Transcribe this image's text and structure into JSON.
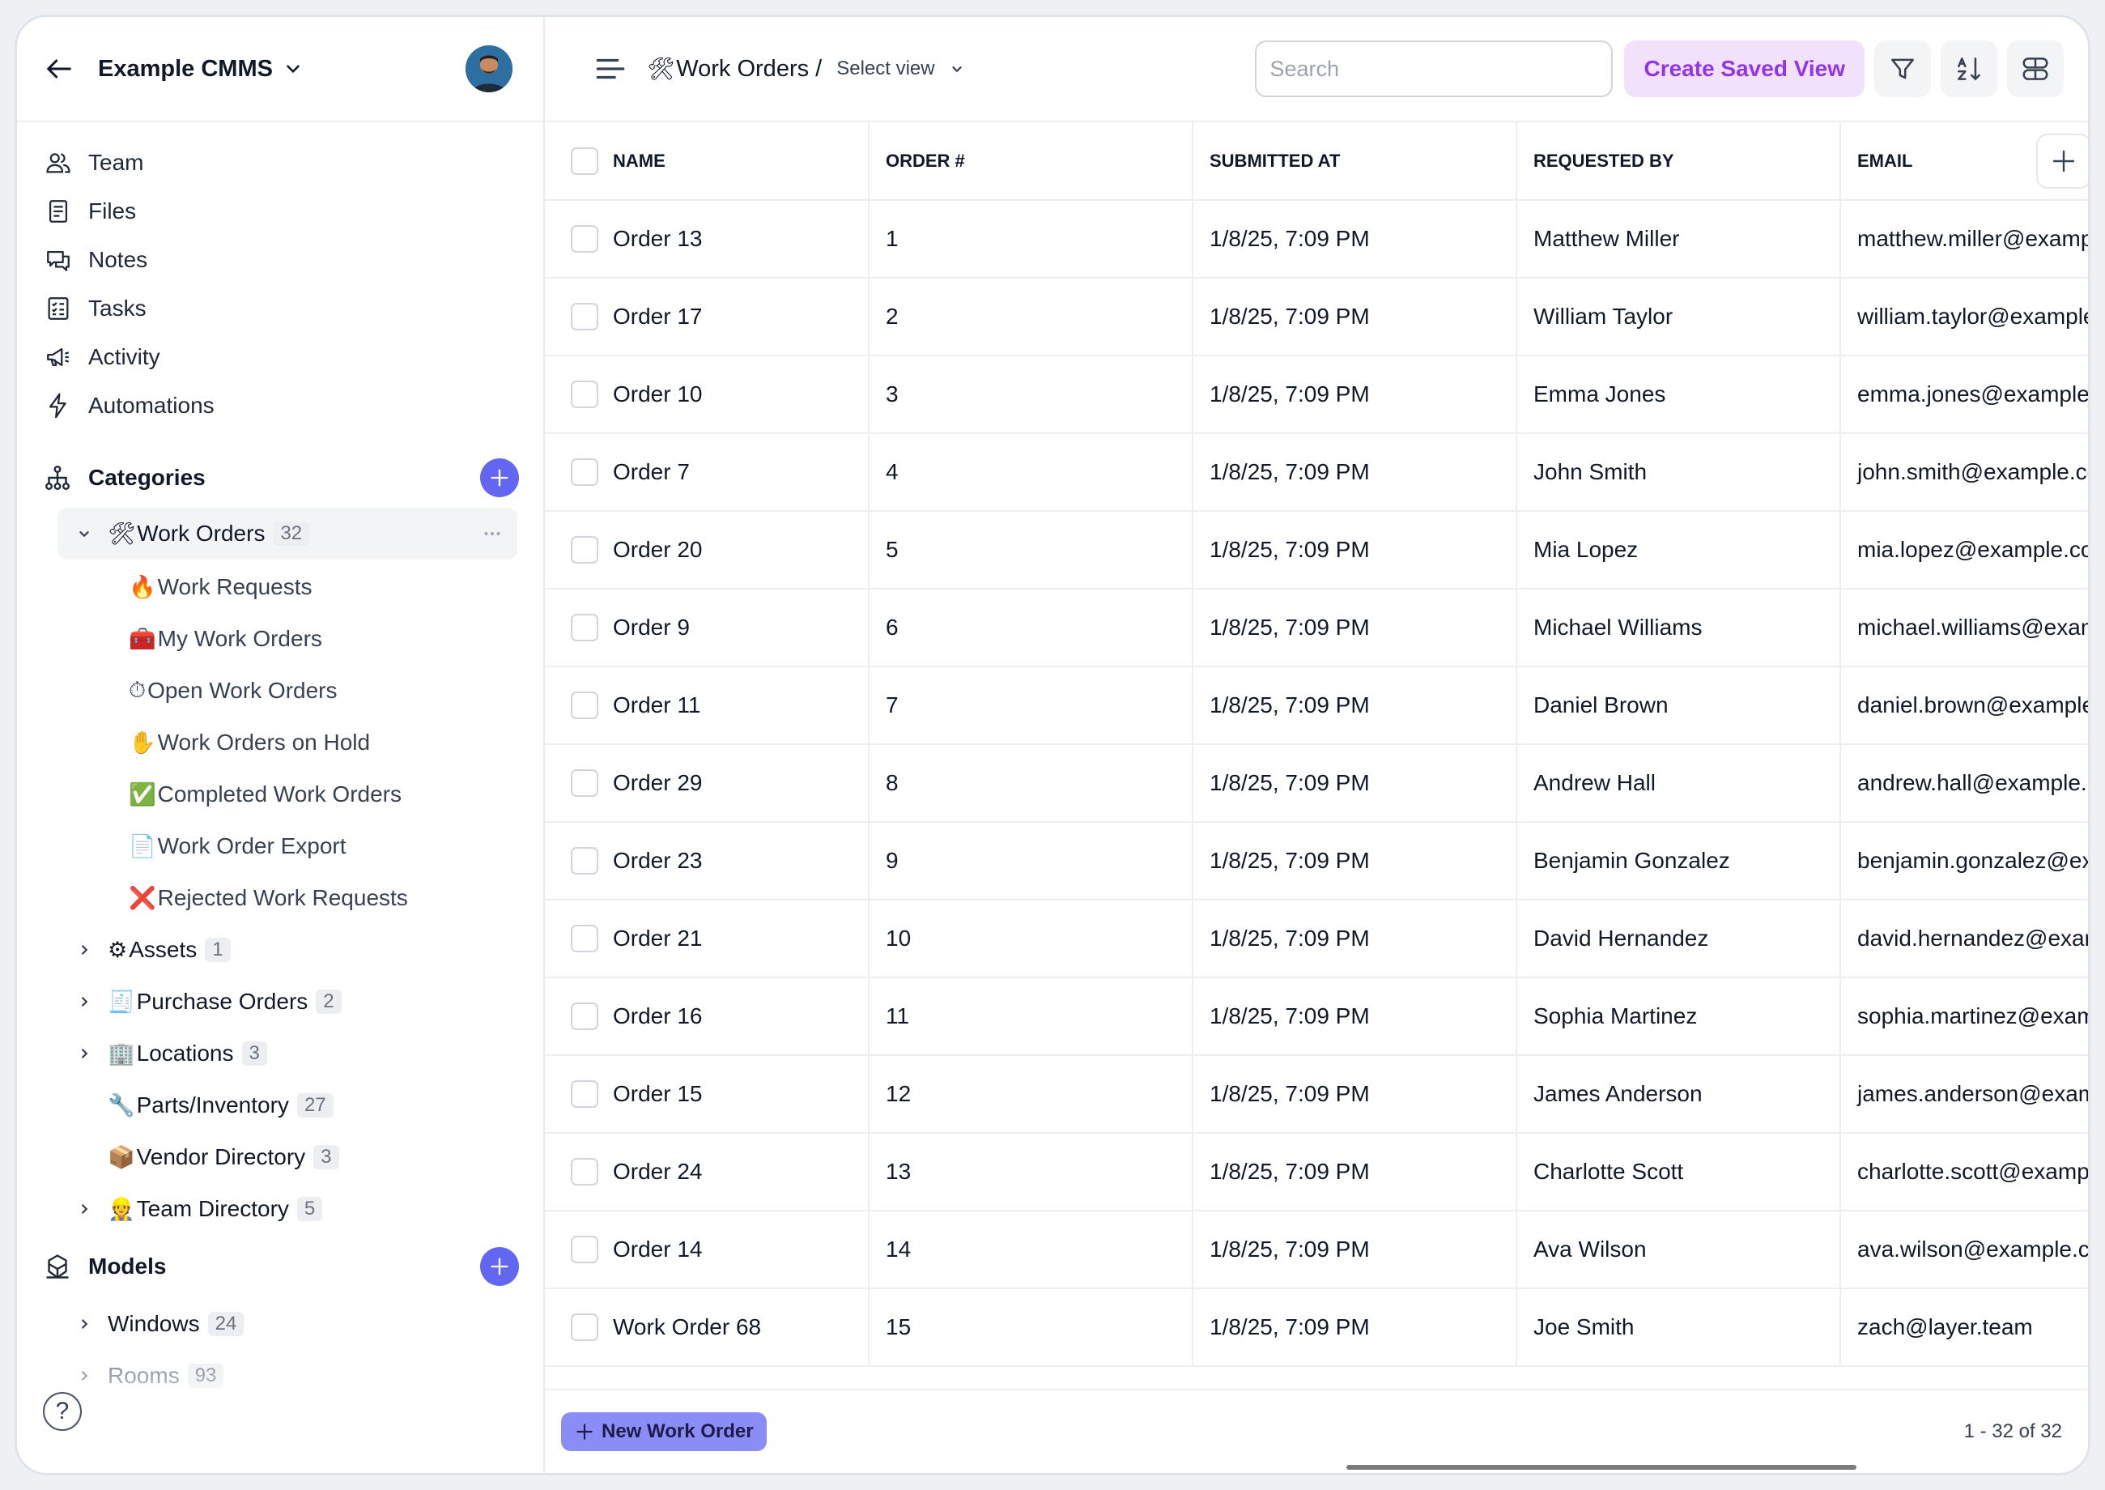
{
  "sidebar": {
    "app_title": "Example CMMS",
    "nav": [
      {
        "label": "Team",
        "icon": "team-icon"
      },
      {
        "label": "Files",
        "icon": "files-icon"
      },
      {
        "label": "Notes",
        "icon": "notes-icon"
      },
      {
        "label": "Tasks",
        "icon": "tasks-icon"
      },
      {
        "label": "Activity",
        "icon": "activity-icon"
      },
      {
        "label": "Automations",
        "icon": "automations-icon"
      }
    ],
    "categories_label": "Categories",
    "categories": [
      {
        "emoji": "🛠",
        "label": "Work Orders",
        "count": "32",
        "expanded": true,
        "children": [
          {
            "emoji": "🔥",
            "label": "Work Requests"
          },
          {
            "emoji": "🧰",
            "label": "My Work Orders"
          },
          {
            "emoji": "⏱",
            "label": "Open Work Orders"
          },
          {
            "emoji": "✋",
            "label": "Work Orders on Hold"
          },
          {
            "emoji": "✅",
            "label": "Completed Work Orders"
          },
          {
            "emoji": "📄",
            "label": "Work Order Export"
          },
          {
            "emoji": "❌",
            "label": "Rejected Work Requests"
          }
        ]
      },
      {
        "emoji": "⚙",
        "label": "Assets",
        "count": "1",
        "chevron": true
      },
      {
        "emoji": "🧾",
        "label": "Purchase Orders",
        "count": "2",
        "chevron": true
      },
      {
        "emoji": "🏢",
        "label": "Locations",
        "count": "3",
        "chevron": true
      },
      {
        "emoji": "🔧",
        "label": "Parts/Inventory",
        "count": "27",
        "chevron": false
      },
      {
        "emoji": "📦",
        "label": "Vendor Directory",
        "count": "3",
        "chevron": false
      },
      {
        "emoji": "👷",
        "label": "Team Directory",
        "count": "5",
        "chevron": true
      }
    ],
    "models_label": "Models",
    "models": [
      {
        "label": "Windows",
        "count": "24"
      },
      {
        "label": "Rooms",
        "count": "93"
      }
    ],
    "help_label": "?"
  },
  "header": {
    "title_emoji": "🛠",
    "title": "Work Orders /",
    "view_select": "Select view",
    "search_placeholder": "Search",
    "create_saved_view": "Create Saved View"
  },
  "table": {
    "columns": [
      "Name",
      "Order #",
      "Submitted At",
      "Requested By",
      "Email"
    ],
    "rows": [
      [
        "Order 13",
        "1",
        "1/8/25, 7:09 PM",
        "Matthew Miller",
        "matthew.miller@example.com"
      ],
      [
        "Order 17",
        "2",
        "1/8/25, 7:09 PM",
        "William Taylor",
        "william.taylor@example.com"
      ],
      [
        "Order 10",
        "3",
        "1/8/25, 7:09 PM",
        "Emma Jones",
        "emma.jones@example.com"
      ],
      [
        "Order 7",
        "4",
        "1/8/25, 7:09 PM",
        "John Smith",
        "john.smith@example.com"
      ],
      [
        "Order 20",
        "5",
        "1/8/25, 7:09 PM",
        "Mia Lopez",
        "mia.lopez@example.com"
      ],
      [
        "Order 9",
        "6",
        "1/8/25, 7:09 PM",
        "Michael Williams",
        "michael.williams@example.com"
      ],
      [
        "Order 11",
        "7",
        "1/8/25, 7:09 PM",
        "Daniel Brown",
        "daniel.brown@example.com"
      ],
      [
        "Order 29",
        "8",
        "1/8/25, 7:09 PM",
        "Andrew Hall",
        "andrew.hall@example.com"
      ],
      [
        "Order 23",
        "9",
        "1/8/25, 7:09 PM",
        "Benjamin Gonzalez",
        "benjamin.gonzalez@example.com"
      ],
      [
        "Order 21",
        "10",
        "1/8/25, 7:09 PM",
        "David Hernandez",
        "david.hernandez@example.com"
      ],
      [
        "Order 16",
        "11",
        "1/8/25, 7:09 PM",
        "Sophia Martinez",
        "sophia.martinez@example.com"
      ],
      [
        "Order 15",
        "12",
        "1/8/25, 7:09 PM",
        "James Anderson",
        "james.anderson@example.com"
      ],
      [
        "Order 24",
        "13",
        "1/8/25, 7:09 PM",
        "Charlotte Scott",
        "charlotte.scott@example.com"
      ],
      [
        "Order 14",
        "14",
        "1/8/25, 7:09 PM",
        "Ava Wilson",
        "ava.wilson@example.com"
      ],
      [
        "Work Order 68",
        "15",
        "1/8/25, 7:09 PM",
        "Joe Smith",
        "zach@layer.team"
      ]
    ]
  },
  "footer": {
    "new_button": "New Work Order",
    "pagination": "1 - 32 of 32"
  },
  "colors": {
    "accent": "#6366f1",
    "saved_view_bg": "#f1e1fb",
    "saved_view_text": "#9333ea"
  }
}
